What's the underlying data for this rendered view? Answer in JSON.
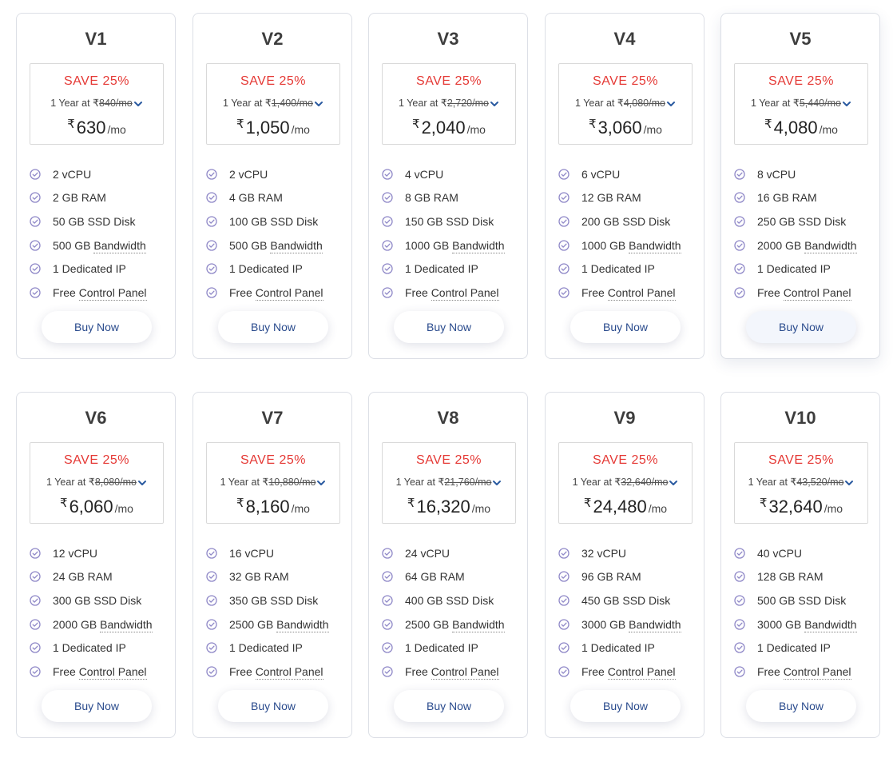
{
  "labels": {
    "save": "SAVE 25%",
    "period_prefix": "1 Year at",
    "currency": "₹",
    "old_suffix": "/mo",
    "per_month": "/mo",
    "buy": "Buy Now"
  },
  "colors": {
    "save": "#e53935",
    "check": "#8e87c7",
    "buy_text": "#2a4b8d",
    "border": "#dcdfe6"
  },
  "plans": [
    {
      "name": "V1",
      "old_price": "840",
      "price": "630",
      "features": [
        {
          "pre": "2 vCPU",
          "link": "",
          "post": ""
        },
        {
          "pre": "2 GB RAM",
          "link": "",
          "post": ""
        },
        {
          "pre": "50 GB SSD Disk",
          "link": "",
          "post": ""
        },
        {
          "pre": "500 GB ",
          "link": "Bandwidth",
          "post": ""
        },
        {
          "pre": "1 Dedicated IP",
          "link": "",
          "post": ""
        },
        {
          "pre": "Free ",
          "link": "Control Panel",
          "post": ""
        }
      ]
    },
    {
      "name": "V2",
      "old_price": "1,400",
      "price": "1,050",
      "features": [
        {
          "pre": "2 vCPU",
          "link": "",
          "post": ""
        },
        {
          "pre": "4 GB RAM",
          "link": "",
          "post": ""
        },
        {
          "pre": "100 GB SSD Disk",
          "link": "",
          "post": ""
        },
        {
          "pre": "500 GB ",
          "link": "Bandwidth",
          "post": ""
        },
        {
          "pre": "1 Dedicated IP",
          "link": "",
          "post": ""
        },
        {
          "pre": "Free ",
          "link": "Control Panel",
          "post": ""
        }
      ]
    },
    {
      "name": "V3",
      "old_price": "2,720",
      "price": "2,040",
      "features": [
        {
          "pre": "4 vCPU",
          "link": "",
          "post": ""
        },
        {
          "pre": "8 GB RAM",
          "link": "",
          "post": ""
        },
        {
          "pre": "150 GB SSD Disk",
          "link": "",
          "post": ""
        },
        {
          "pre": "1000 GB ",
          "link": "Bandwidth",
          "post": ""
        },
        {
          "pre": "1 Dedicated IP",
          "link": "",
          "post": ""
        },
        {
          "pre": "Free ",
          "link": "Control Panel",
          "post": ""
        }
      ]
    },
    {
      "name": "V4",
      "old_price": "4,080",
      "price": "3,060",
      "features": [
        {
          "pre": "6 vCPU",
          "link": "",
          "post": ""
        },
        {
          "pre": "12 GB RAM",
          "link": "",
          "post": ""
        },
        {
          "pre": "200 GB SSD Disk",
          "link": "",
          "post": ""
        },
        {
          "pre": "1000 GB ",
          "link": "Bandwidth",
          "post": ""
        },
        {
          "pre": "1 Dedicated IP",
          "link": "",
          "post": ""
        },
        {
          "pre": "Free ",
          "link": "Control Panel",
          "post": ""
        }
      ]
    },
    {
      "name": "V5",
      "old_price": "5,440",
      "price": "4,080",
      "hovered": true,
      "features": [
        {
          "pre": "8 vCPU",
          "link": "",
          "post": ""
        },
        {
          "pre": "16 GB RAM",
          "link": "",
          "post": ""
        },
        {
          "pre": "250 GB SSD Disk",
          "link": "",
          "post": ""
        },
        {
          "pre": "2000 GB ",
          "link": "Bandwidth",
          "post": ""
        },
        {
          "pre": "1 Dedicated IP",
          "link": "",
          "post": ""
        },
        {
          "pre": "Free ",
          "link": "Control Panel",
          "post": ""
        }
      ]
    },
    {
      "name": "V6",
      "old_price": "8,080",
      "price": "6,060",
      "features": [
        {
          "pre": "12 vCPU",
          "link": "",
          "post": ""
        },
        {
          "pre": "24 GB RAM",
          "link": "",
          "post": ""
        },
        {
          "pre": "300 GB SSD Disk",
          "link": "",
          "post": ""
        },
        {
          "pre": "2000 GB ",
          "link": "Bandwidth",
          "post": ""
        },
        {
          "pre": "1 Dedicated IP",
          "link": "",
          "post": ""
        },
        {
          "pre": "Free ",
          "link": "Control Panel",
          "post": ""
        }
      ]
    },
    {
      "name": "V7",
      "old_price": "10,880",
      "price": "8,160",
      "features": [
        {
          "pre": "16 vCPU",
          "link": "",
          "post": ""
        },
        {
          "pre": "32 GB RAM",
          "link": "",
          "post": ""
        },
        {
          "pre": "350 GB SSD Disk",
          "link": "",
          "post": ""
        },
        {
          "pre": "2500 GB ",
          "link": "Bandwidth",
          "post": ""
        },
        {
          "pre": "1 Dedicated IP",
          "link": "",
          "post": ""
        },
        {
          "pre": "Free ",
          "link": "Control Panel",
          "post": ""
        }
      ]
    },
    {
      "name": "V8",
      "old_price": "21,760",
      "price": "16,320",
      "features": [
        {
          "pre": "24 vCPU",
          "link": "",
          "post": ""
        },
        {
          "pre": "64 GB RAM",
          "link": "",
          "post": ""
        },
        {
          "pre": "400 GB SSD Disk",
          "link": "",
          "post": ""
        },
        {
          "pre": "2500 GB ",
          "link": "Bandwidth",
          "post": ""
        },
        {
          "pre": "1 Dedicated IP",
          "link": "",
          "post": ""
        },
        {
          "pre": "Free ",
          "link": "Control Panel",
          "post": ""
        }
      ]
    },
    {
      "name": "V9",
      "old_price": "32,640",
      "price": "24,480",
      "features": [
        {
          "pre": "32 vCPU",
          "link": "",
          "post": ""
        },
        {
          "pre": "96 GB RAM",
          "link": "",
          "post": ""
        },
        {
          "pre": "450 GB SSD Disk",
          "link": "",
          "post": ""
        },
        {
          "pre": "3000 GB ",
          "link": "Bandwidth",
          "post": ""
        },
        {
          "pre": "1 Dedicated IP",
          "link": "",
          "post": ""
        },
        {
          "pre": "Free ",
          "link": "Control Panel",
          "post": ""
        }
      ]
    },
    {
      "name": "V10",
      "old_price": "43,520",
      "price": "32,640",
      "features": [
        {
          "pre": "40 vCPU",
          "link": "",
          "post": ""
        },
        {
          "pre": "128 GB RAM",
          "link": "",
          "post": ""
        },
        {
          "pre": "500 GB SSD Disk",
          "link": "",
          "post": ""
        },
        {
          "pre": "3000 GB ",
          "link": "Bandwidth",
          "post": ""
        },
        {
          "pre": "1 Dedicated IP",
          "link": "",
          "post": ""
        },
        {
          "pre": "Free ",
          "link": "Control Panel",
          "post": ""
        }
      ]
    }
  ]
}
